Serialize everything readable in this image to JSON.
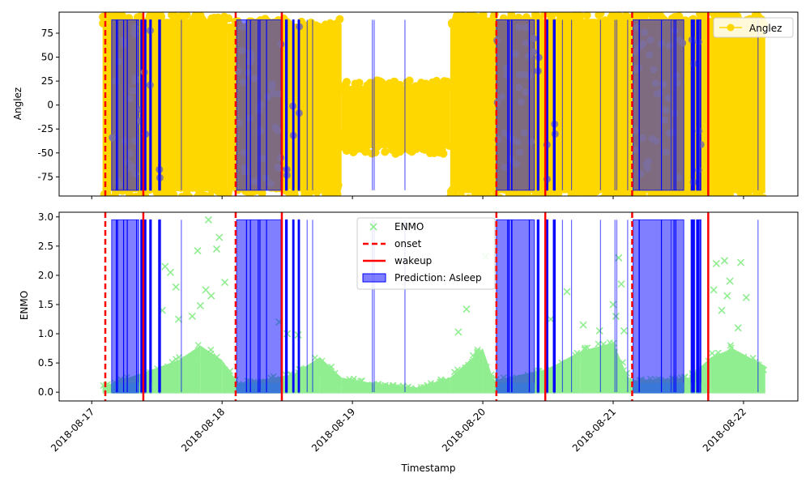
{
  "chart_data": [
    {
      "type": "scatter",
      "panel": "top",
      "ylabel": "Anglez",
      "ylim": [
        -95,
        97
      ],
      "yticks": [
        -75,
        -50,
        -25,
        0,
        25,
        50,
        75
      ],
      "legend": {
        "placement": "upper-right",
        "entries": [
          {
            "name": "Anglez",
            "marker": "circle-line"
          }
        ]
      },
      "series": [
        {
          "name": "Anglez",
          "color": "#FFD700"
        }
      ],
      "approx_range": [
        {
          "from": "2018-08-17T02:00",
          "to": "2018-08-18T01:00",
          "min": -90,
          "max": 90
        },
        {
          "from": "2018-08-18T01:00",
          "to": "2018-08-18T22:00",
          "min": -88,
          "max": 85
        },
        {
          "from": "2018-08-18T22:00",
          "to": "2018-08-19T18:00",
          "min": -45,
          "max": 20
        },
        {
          "from": "2018-08-19T18:00",
          "to": "2018-08-22T04:00",
          "min": -92,
          "max": 90
        }
      ]
    },
    {
      "type": "scatter",
      "panel": "bottom",
      "ylabel": "ENMO",
      "xlabel": "Timestamp",
      "ylim": [
        -0.15,
        3.08
      ],
      "yticks": [
        "0.0",
        "0.5",
        "1.0",
        "1.5",
        "2.0",
        "2.5",
        "3.0"
      ],
      "legend": {
        "placement": "upper-center",
        "entries": [
          {
            "name": "ENMO",
            "marker": "x",
            "color": "#90EE90"
          },
          {
            "name": "onset",
            "marker": "dashed-line",
            "color": "#FF0000"
          },
          {
            "name": "wakeup",
            "marker": "solid-line",
            "color": "#FF0000"
          },
          {
            "name": "Prediction: Asleep",
            "marker": "patch",
            "color": "#0000FF"
          }
        ]
      },
      "outliers": [
        {
          "x": "2018-08-17T13:30",
          "y": 2.15
        },
        {
          "x": "2018-08-17T14:30",
          "y": 2.05
        },
        {
          "x": "2018-08-17T15:30",
          "y": 1.8
        },
        {
          "x": "2018-08-17T13:00",
          "y": 1.4
        },
        {
          "x": "2018-08-17T16:00",
          "y": 1.25
        },
        {
          "x": "2018-08-17T19:30",
          "y": 2.42
        },
        {
          "x": "2018-08-17T21:30",
          "y": 2.95
        },
        {
          "x": "2018-08-17T21:00",
          "y": 1.75
        },
        {
          "x": "2018-08-17T22:00",
          "y": 1.65
        },
        {
          "x": "2018-08-17T23:30",
          "y": 2.65
        },
        {
          "x": "2018-08-17T23:00",
          "y": 2.45
        },
        {
          "x": "2018-08-18T00:30",
          "y": 1.88
        },
        {
          "x": "2018-08-17T20:00",
          "y": 1.48
        },
        {
          "x": "2018-08-17T18:30",
          "y": 1.3
        },
        {
          "x": "2018-08-18T10:30",
          "y": 1.2
        },
        {
          "x": "2018-08-18T12:00",
          "y": 1.0
        },
        {
          "x": "2018-08-18T14:00",
          "y": 0.98
        },
        {
          "x": "2018-08-19T21:00",
          "y": 1.42
        },
        {
          "x": "2018-08-19T19:30",
          "y": 1.03
        },
        {
          "x": "2018-08-20T00:30",
          "y": 2.32
        },
        {
          "x": "2018-08-20T12:30",
          "y": 1.25
        },
        {
          "x": "2018-08-20T15:30",
          "y": 1.72
        },
        {
          "x": "2018-08-20T18:30",
          "y": 1.15
        },
        {
          "x": "2018-08-20T21:30",
          "y": 1.05
        },
        {
          "x": "2018-08-21T00:00",
          "y": 1.5
        },
        {
          "x": "2018-08-21T01:00",
          "y": 2.3
        },
        {
          "x": "2018-08-21T01:30",
          "y": 1.85
        },
        {
          "x": "2018-08-21T00:30",
          "y": 1.3
        },
        {
          "x": "2018-08-21T02:00",
          "y": 1.05
        },
        {
          "x": "2018-08-21T18:30",
          "y": 1.75
        },
        {
          "x": "2018-08-21T19:00",
          "y": 2.2
        },
        {
          "x": "2018-08-21T20:30",
          "y": 2.25
        },
        {
          "x": "2018-08-21T21:30",
          "y": 1.9
        },
        {
          "x": "2018-08-21T21:00",
          "y": 1.65
        },
        {
          "x": "2018-08-21T23:30",
          "y": 2.22
        },
        {
          "x": "2018-08-22T00:30",
          "y": 1.62
        },
        {
          "x": "2018-08-21T20:00",
          "y": 1.4
        },
        {
          "x": "2018-08-21T23:00",
          "y": 1.1
        }
      ],
      "envelope": [
        {
          "x": "2018-08-17T02:00",
          "y": 0.1
        },
        {
          "x": "2018-08-17T10:00",
          "y": 0.35
        },
        {
          "x": "2018-08-17T16:00",
          "y": 0.55
        },
        {
          "x": "2018-08-17T20:00",
          "y": 0.8
        },
        {
          "x": "2018-08-18T00:00",
          "y": 0.55
        },
        {
          "x": "2018-08-18T03:00",
          "y": 0.15
        },
        {
          "x": "2018-08-18T13:00",
          "y": 0.3
        },
        {
          "x": "2018-08-18T18:00",
          "y": 0.6
        },
        {
          "x": "2018-08-18T22:00",
          "y": 0.25
        },
        {
          "x": "2018-08-19T04:00",
          "y": 0.15
        },
        {
          "x": "2018-08-19T12:00",
          "y": 0.08
        },
        {
          "x": "2018-08-19T18:00",
          "y": 0.25
        },
        {
          "x": "2018-08-20T00:00",
          "y": 0.75
        },
        {
          "x": "2018-08-20T02:00",
          "y": 0.2
        },
        {
          "x": "2018-08-20T12:00",
          "y": 0.4
        },
        {
          "x": "2018-08-20T18:00",
          "y": 0.7
        },
        {
          "x": "2018-08-21T00:00",
          "y": 0.85
        },
        {
          "x": "2018-08-21T03:00",
          "y": 0.2
        },
        {
          "x": "2018-08-21T14:00",
          "y": 0.25
        },
        {
          "x": "2018-08-21T18:00",
          "y": 0.6
        },
        {
          "x": "2018-08-21T22:00",
          "y": 0.75
        },
        {
          "x": "2018-08-22T04:00",
          "y": 0.45
        }
      ]
    }
  ],
  "x_axis": {
    "xlabel": "Timestamp",
    "range": [
      "2018-08-16T18:00",
      "2018-08-22T10:00"
    ],
    "ticks": [
      "2018-08-17",
      "2018-08-18",
      "2018-08-19",
      "2018-08-20",
      "2018-08-21",
      "2018-08-22"
    ],
    "tick_rotation_deg": 45
  },
  "events": {
    "onset": [
      "2018-08-17T02:30",
      "2018-08-18T02:30",
      "2018-08-20T02:30",
      "2018-08-21T03:30"
    ],
    "wakeup": [
      "2018-08-17T09:30",
      "2018-08-18T11:00",
      "2018-08-20T11:30",
      "2018-08-21T17:30"
    ]
  },
  "predictions_asleep": {
    "ymax_top": 89,
    "ymax_bottom": 2.95,
    "spans": [
      [
        "2018-08-17T03:40",
        "2018-08-17T08:40"
      ],
      [
        "2018-08-17T09:00",
        "2018-08-17T09:20"
      ],
      [
        "2018-08-17T09:40",
        "2018-08-17T10:00"
      ],
      [
        "2018-08-17T10:40",
        "2018-08-17T11:00"
      ],
      [
        "2018-08-17T12:20",
        "2018-08-17T12:40"
      ],
      [
        "2018-08-18T02:40",
        "2018-08-18T10:50"
      ],
      [
        "2018-08-18T11:40",
        "2018-08-18T12:00"
      ],
      [
        "2018-08-18T13:00",
        "2018-08-18T13:15"
      ],
      [
        "2018-08-18T14:00",
        "2018-08-18T14:15"
      ],
      [
        "2018-08-20T02:30",
        "2018-08-20T09:30"
      ],
      [
        "2018-08-20T10:00",
        "2018-08-20T10:20"
      ],
      [
        "2018-08-20T11:40",
        "2018-08-20T12:00"
      ],
      [
        "2018-08-20T13:00",
        "2018-08-20T13:20"
      ],
      [
        "2018-08-21T03:40",
        "2018-08-21T13:00"
      ],
      [
        "2018-08-21T14:20",
        "2018-08-21T15:00"
      ],
      [
        "2018-08-21T15:20",
        "2018-08-21T16:10"
      ]
    ],
    "lines": [
      "2018-08-17T16:30",
      "2018-08-18T15:40",
      "2018-08-18T16:40",
      "2018-08-19T03:40",
      "2018-08-19T04:00",
      "2018-08-19T09:40",
      "2018-08-20T14:40",
      "2018-08-20T16:20",
      "2018-08-20T21:40",
      "2018-08-21T00:20",
      "2018-08-21T00:40",
      "2018-08-21T02:40",
      "2018-08-21T10:40",
      "2018-08-22T02:40"
    ]
  },
  "colors": {
    "anglez": "#FFD700",
    "anglez_overlap": "#7B6FA0",
    "enmo": "#90EE90",
    "enmo_asleep": "#3A78D8",
    "asleep_fill": "#0000FF",
    "event_line": "#FF0000"
  }
}
